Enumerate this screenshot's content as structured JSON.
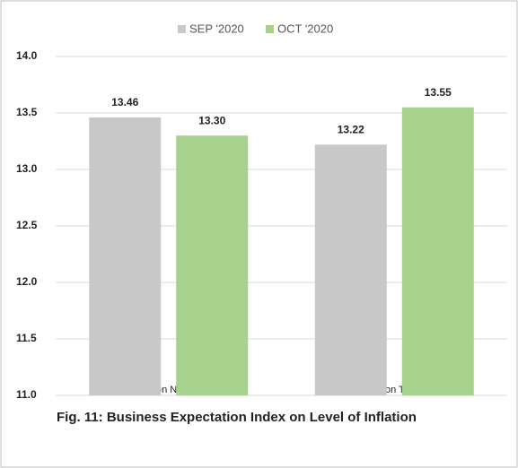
{
  "chart_data": {
    "type": "bar",
    "caption": "Fig. 11: Business Expectation Index on Level of Inflation",
    "categories": [
      "Level of Inflation Next Six Months",
      "Level of Inflation Twelve Months"
    ],
    "series": [
      {
        "name": "SEP '2020",
        "color": "#c8c8c8",
        "values": [
          13.46,
          13.22
        ],
        "value_labels": [
          "13.46",
          "13.22"
        ]
      },
      {
        "name": "OCT '2020",
        "color": "#a9d18e",
        "values": [
          13.3,
          13.55
        ],
        "value_labels": [
          "13.30",
          "13.55"
        ]
      }
    ],
    "ylim": [
      11,
      14
    ],
    "yticks": [
      {
        "value": 11,
        "label": "11.0"
      },
      11.5,
      {
        "value": 12,
        "label": "12.0"
      },
      12.5,
      {
        "value": 13,
        "label": "13.0"
      },
      13.5,
      {
        "value": 14,
        "label": "14.0"
      }
    ],
    "grid": true,
    "legend": "top"
  }
}
